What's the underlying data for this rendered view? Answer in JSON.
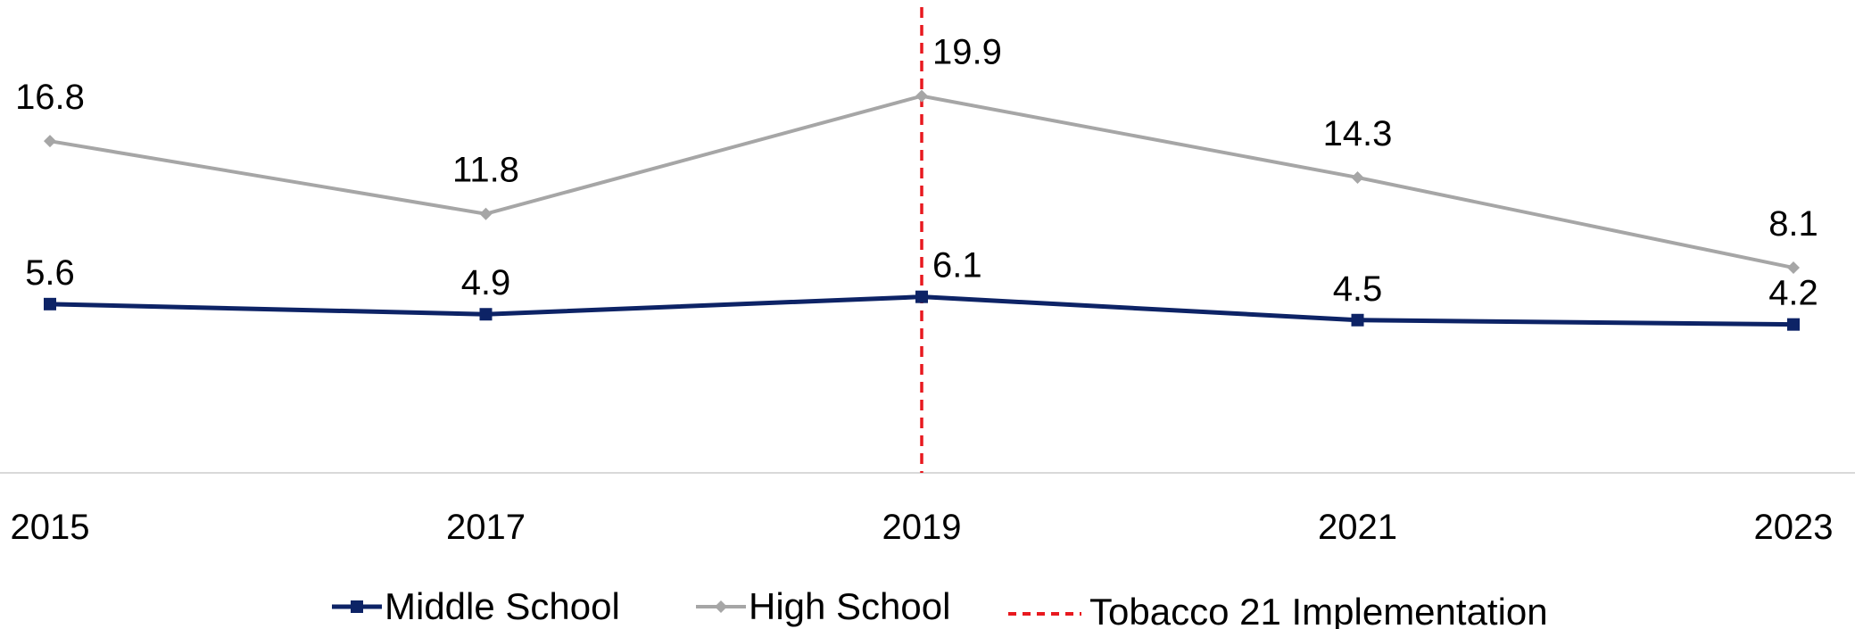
{
  "chart_data": {
    "type": "line",
    "categories": [
      "2015",
      "2017",
      "2019",
      "2021",
      "2023"
    ],
    "series": [
      {
        "name": "Middle School",
        "values": [
          5.6,
          4.9,
          6.1,
          4.5,
          4.2
        ],
        "color": "#0d2366",
        "marker": "square"
      },
      {
        "name": "High School",
        "values": [
          16.8,
          11.8,
          19.9,
          14.3,
          8.1
        ],
        "color": "#a6a6a6",
        "marker": "diamond"
      }
    ],
    "reference_line": {
      "name": "Tobacco 21 Implementation",
      "x": "2019",
      "color": "#e8191f",
      "style": "dashed"
    },
    "ylim": [
      -6.0,
      26.5
    ],
    "grid": false,
    "legend_position": "bottom",
    "data_labels": true
  }
}
